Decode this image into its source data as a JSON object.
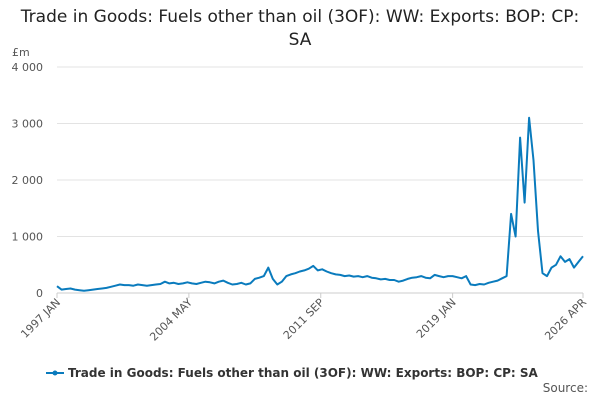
{
  "chart_data": {
    "type": "line",
    "title": "Trade in Goods: Fuels other than oil (3OF): WW: Exports: BOP: CP: SA",
    "y_unit": "£m",
    "source": "Source:",
    "x": [
      "1997-01",
      "1997-04",
      "1997-07",
      "1997-10",
      "1998-01",
      "1998-04",
      "1998-07",
      "1998-10",
      "1999-01",
      "1999-04",
      "1999-07",
      "1999-10",
      "2000-01",
      "2000-04",
      "2000-07",
      "2000-10",
      "2001-01",
      "2001-04",
      "2001-07",
      "2001-10",
      "2002-01",
      "2002-04",
      "2002-07",
      "2002-10",
      "2003-01",
      "2003-04",
      "2003-07",
      "2003-10",
      "2004-01",
      "2004-04",
      "2004-07",
      "2004-10",
      "2005-01",
      "2005-04",
      "2005-07",
      "2005-10",
      "2006-01",
      "2006-04",
      "2006-07",
      "2006-10",
      "2007-01",
      "2007-04",
      "2007-07",
      "2007-10",
      "2008-01",
      "2008-04",
      "2008-07",
      "2008-10",
      "2009-01",
      "2009-04",
      "2009-07",
      "2009-10",
      "2010-01",
      "2010-04",
      "2010-07",
      "2010-10",
      "2011-01",
      "2011-04",
      "2011-07",
      "2011-10",
      "2012-01",
      "2012-04",
      "2012-07",
      "2012-10",
      "2013-01",
      "2013-04",
      "2013-07",
      "2013-10",
      "2014-01",
      "2014-04",
      "2014-07",
      "2014-10",
      "2015-01",
      "2015-04",
      "2015-07",
      "2015-10",
      "2016-01",
      "2016-04",
      "2016-07",
      "2016-10",
      "2017-01",
      "2017-04",
      "2017-07",
      "2017-10",
      "2018-01",
      "2018-04",
      "2018-07",
      "2018-10",
      "2019-01",
      "2019-04",
      "2019-07",
      "2019-10",
      "2020-01",
      "2020-04",
      "2020-07",
      "2020-10",
      "2021-01",
      "2021-04",
      "2021-07",
      "2021-10",
      "2022-01",
      "2022-04",
      "2022-07",
      "2022-10",
      "2023-01",
      "2023-04",
      "2023-07",
      "2023-10",
      "2024-01",
      "2024-04",
      "2024-07",
      "2024-10",
      "2025-01",
      "2025-04",
      "2025-07",
      "2025-10",
      "2026-01",
      "2026-04"
    ],
    "series": [
      {
        "name": "Trade in Goods: Fuels other than oil (3OF): WW: Exports: BOP: CP: SA",
        "color": "#0a7bbd",
        "values": [
          120,
          60,
          70,
          80,
          60,
          50,
          40,
          50,
          60,
          70,
          80,
          90,
          110,
          130,
          150,
          140,
          140,
          130,
          150,
          140,
          130,
          140,
          150,
          160,
          200,
          170,
          180,
          160,
          170,
          190,
          170,
          160,
          180,
          200,
          190,
          170,
          200,
          220,
          180,
          150,
          160,
          180,
          150,
          170,
          250,
          270,
          300,
          450,
          250,
          150,
          200,
          300,
          330,
          350,
          380,
          400,
          430,
          480,
          400,
          420,
          380,
          350,
          330,
          320,
          300,
          310,
          290,
          300,
          280,
          300,
          270,
          260,
          240,
          250,
          230,
          230,
          200,
          220,
          250,
          270,
          280,
          300,
          270,
          260,
          320,
          300,
          280,
          300,
          300,
          280,
          260,
          300,
          150,
          140,
          160,
          150,
          180,
          200,
          220,
          260,
          300,
          1400,
          1000,
          2750,
          1600,
          3100,
          2350,
          1100,
          350,
          300,
          450,
          500,
          650,
          550,
          600,
          450,
          550,
          650
        ]
      }
    ],
    "ylim": [
      0,
      4000
    ],
    "yticks": [
      0,
      {
        "value": 1000,
        "label": "1 000"
      },
      {
        "value": 2000,
        "label": "2 000"
      },
      {
        "value": 3000,
        "label": "3 000"
      },
      {
        "value": 4000,
        "label": "4 000"
      }
    ],
    "xticks": [
      {
        "value": "1997-01",
        "label": "1997 JAN"
      },
      {
        "value": "2004-05",
        "label": "2004 MAY"
      },
      {
        "value": "2011-09",
        "label": "2011 SEP"
      },
      {
        "value": "2019-01",
        "label": "2019 JAN"
      },
      {
        "value": "2026-04",
        "label": "2026 APR"
      }
    ],
    "grid": true
  }
}
